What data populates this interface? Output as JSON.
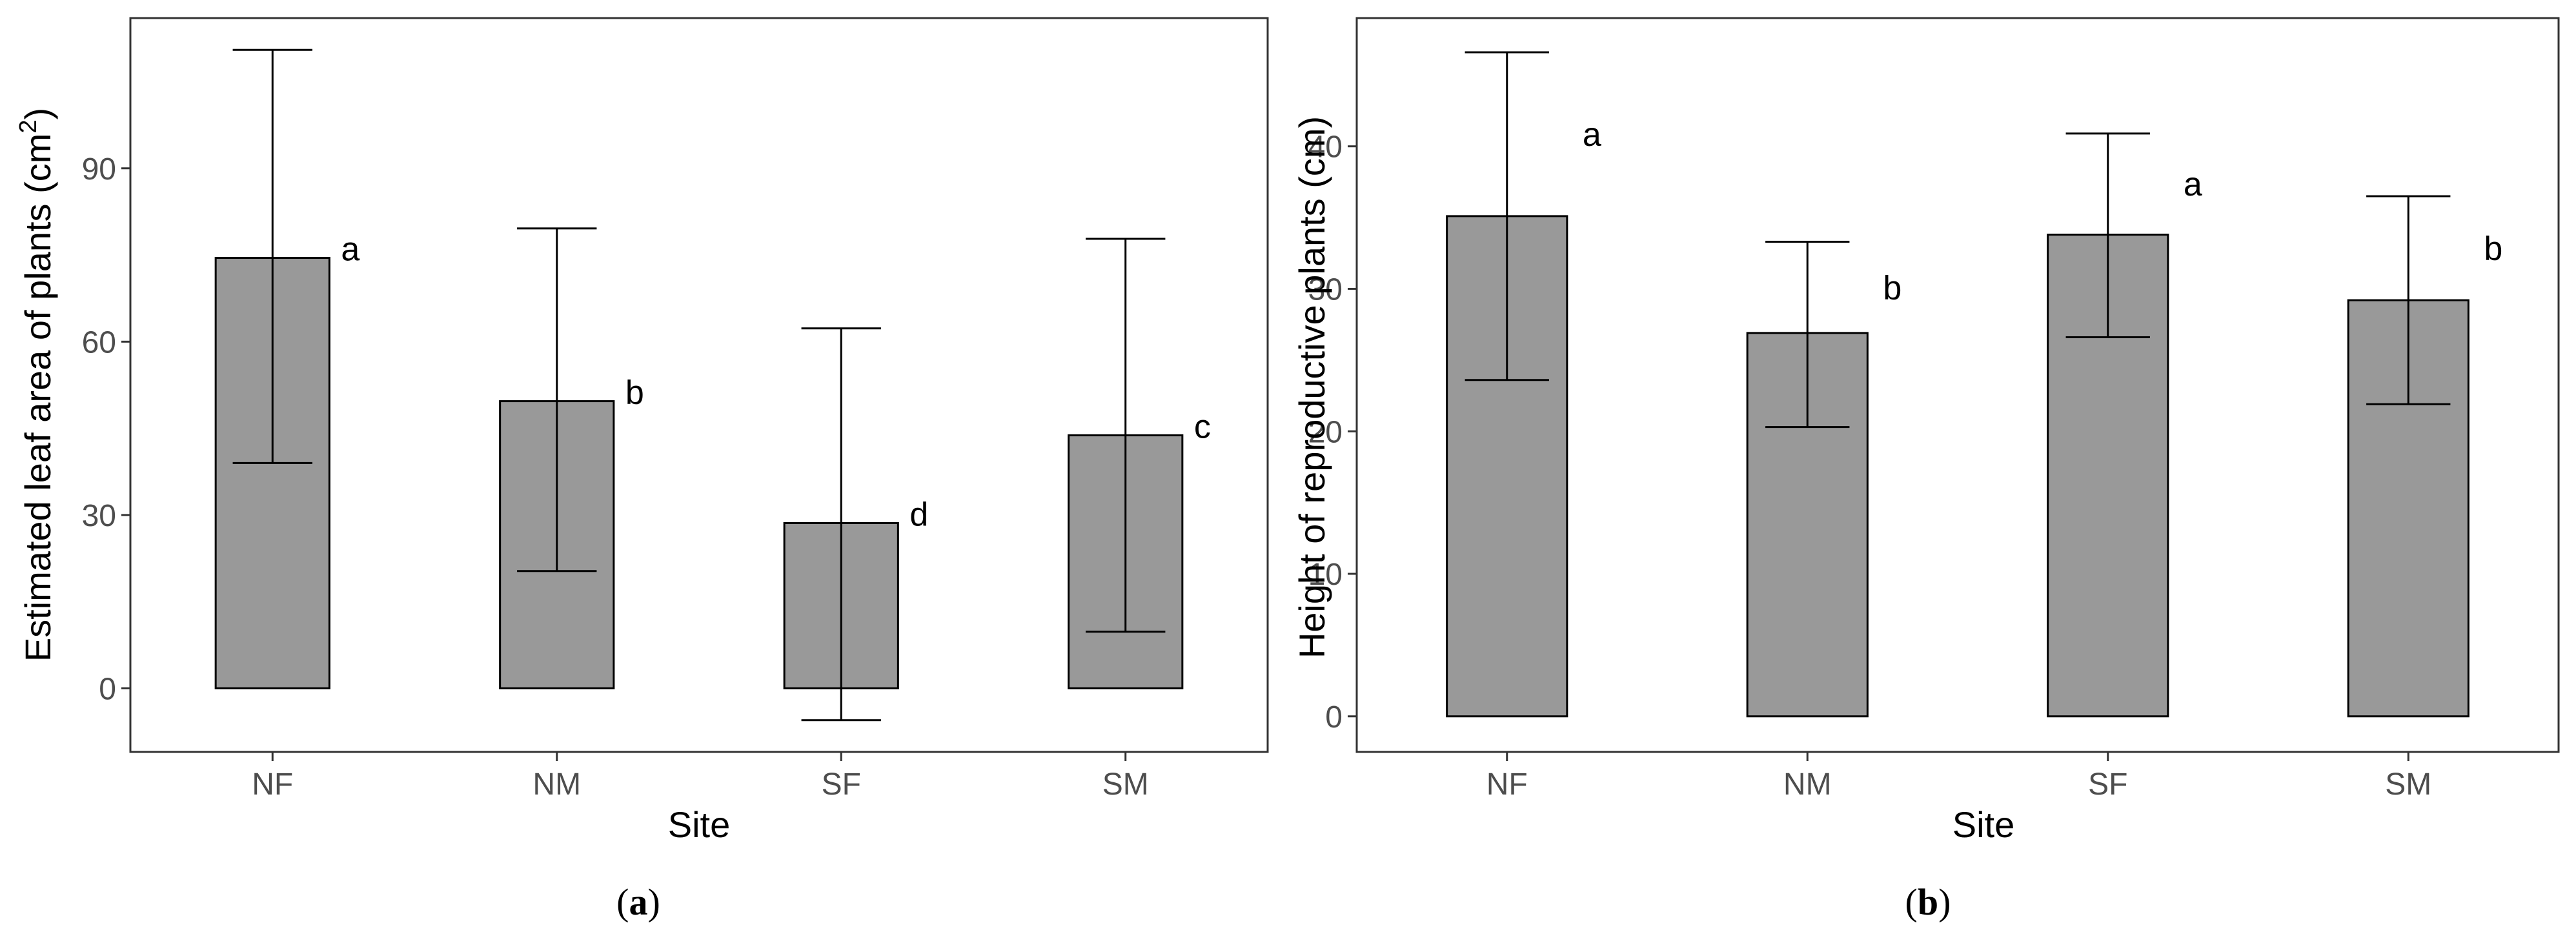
{
  "chart_data": [
    {
      "panel_label": {
        "open": "(",
        "letter": "a",
        "close": ")"
      },
      "type": "bar",
      "xlabel": "Site",
      "ylabel": "Estimated leaf area of plants (cm",
      "ylabel_sup": "2",
      "ylabel_close": ")",
      "categories": [
        "NF",
        "NM",
        "SF",
        "SM"
      ],
      "values": [
        74.5,
        49.7,
        28.6,
        43.8
      ],
      "error_low": [
        39,
        20.3,
        -5.5,
        9.8
      ],
      "error_high": [
        110.5,
        79.6,
        62.3,
        77.8
      ],
      "letters": [
        "a",
        "b",
        "d",
        "c"
      ],
      "yticks": [
        0,
        30,
        60,
        90
      ],
      "ylim": [
        -11,
        116
      ],
      "grid": false,
      "bar_color": "#999999"
    },
    {
      "panel_label": {
        "open": "(",
        "letter": "b",
        "close": ")"
      },
      "type": "bar",
      "xlabel": "Site",
      "ylabel": "Height of reproductive plants (cm)",
      "categories": [
        "NF",
        "NM",
        "SF",
        "SM"
      ],
      "values": [
        35.1,
        26.9,
        33.8,
        29.2
      ],
      "error_low": [
        23.6,
        20.3,
        26.6,
        21.9
      ],
      "error_high": [
        46.6,
        33.3,
        40.9,
        36.5
      ],
      "letters": [
        "a",
        "b",
        "a",
        "b"
      ],
      "yticks": [
        0,
        10,
        20,
        30,
        40
      ],
      "ylim": [
        -2.5,
        49
      ],
      "grid": false,
      "bar_color": "#999999"
    }
  ]
}
